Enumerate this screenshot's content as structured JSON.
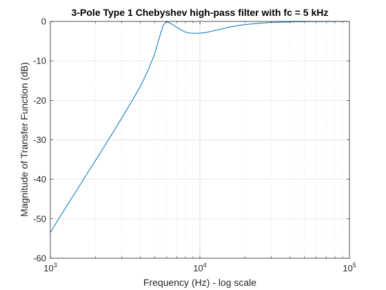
{
  "chart_data": {
    "type": "line",
    "title": "3-Pole Type 1 Chebyshev high-pass filter with fc = 5 kHz",
    "xlabel": "Frequency (Hz) - log scale",
    "ylabel": "Magnitude of Transfer Function (dB)",
    "x_scale": "log",
    "xlim": [
      1000,
      100000
    ],
    "ylim": [
      -60,
      0
    ],
    "x_ticks": [
      {
        "value": 1000,
        "base": "10",
        "exp": "3"
      },
      {
        "value": 10000,
        "base": "10",
        "exp": "4"
      },
      {
        "value": 100000,
        "base": "10",
        "exp": "5"
      }
    ],
    "y_ticks": [
      {
        "value": 0,
        "label": "0"
      },
      {
        "value": -10,
        "label": "-10"
      },
      {
        "value": -20,
        "label": "-20"
      },
      {
        "value": -30,
        "label": "-30"
      },
      {
        "value": -40,
        "label": "-40"
      },
      {
        "value": -50,
        "label": "-50"
      },
      {
        "value": -60,
        "label": "-60"
      }
    ],
    "grid": true,
    "line_color": "#0072BD",
    "series": [
      {
        "x": [
          1000,
          1100,
          1200,
          1300,
          1400,
          1500,
          1600,
          1800,
          2000,
          2200,
          2500,
          2800,
          3000,
          3300,
          3500,
          3800,
          4000,
          4200,
          4500,
          4800,
          5000,
          5200,
          5500,
          5700,
          6000,
          6500,
          7000,
          7500,
          8000,
          8500,
          9000,
          10000,
          11000,
          12000,
          14000,
          16000,
          18000,
          20000,
          25000,
          30000,
          40000,
          50000,
          60000,
          80000,
          100000
        ],
        "y": [
          -53.5,
          -50.9,
          -48.6,
          -46.5,
          -44.6,
          -42.8,
          -41.1,
          -38.0,
          -35.3,
          -32.8,
          -29.4,
          -26.4,
          -24.5,
          -21.9,
          -20.3,
          -17.9,
          -16.4,
          -14.8,
          -12.4,
          -9.8,
          -8.0,
          -5.8,
          -2.7,
          -0.9,
          0.0,
          -0.7,
          -1.5,
          -2.2,
          -2.7,
          -2.95,
          -3.0,
          -3.0,
          -2.8,
          -2.5,
          -1.9,
          -1.4,
          -1.05,
          -0.8,
          -0.45,
          -0.27,
          -0.12,
          -0.06,
          -0.04,
          -0.02,
          -0.01
        ]
      }
    ]
  }
}
